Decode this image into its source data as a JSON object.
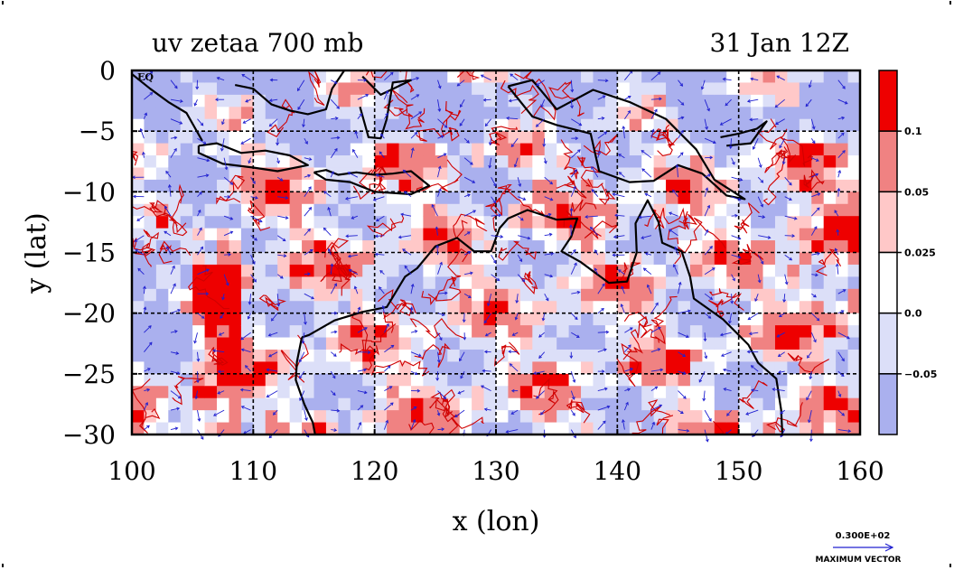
{
  "chart_data": {
    "type": "heatmap",
    "title_left": "uv zetaa 700 mb",
    "title_right": "31 Jan 12Z",
    "xlabel": "x (lon)",
    "ylabel": "y (lat)",
    "xlim": [
      100,
      160
    ],
    "ylim": [
      -30,
      0
    ],
    "x_ticks": [
      100,
      110,
      120,
      130,
      140,
      150,
      160
    ],
    "y_ticks": [
      0,
      -5,
      -10,
      -15,
      -20,
      -25,
      -30
    ],
    "x_tick_labels": [
      "100",
      "110",
      "120",
      "130",
      "140",
      "150",
      "160"
    ],
    "y_tick_labels": [
      "0",
      "−5",
      "−10",
      "−15",
      "−20",
      "−25",
      "−30"
    ],
    "corner_label": "EQ",
    "grid": true,
    "colorbar": {
      "levels": [
        -0.05,
        0.0,
        0.025,
        0.05,
        0.1
      ],
      "level_labels": [
        "−0.05",
        "0.0",
        "0.025",
        "0.05",
        "0.1"
      ],
      "colors": [
        "#aab0ee",
        "#dcdff8",
        "#ffffff",
        "#ffc8c8",
        "#f08282",
        "#ee0000"
      ]
    },
    "vector_key": {
      "value_label": "0.300E+02",
      "caption": "MAXIMUM VECTOR"
    }
  },
  "colors": {
    "coast": "#000000",
    "vector": "#2020d0",
    "contour": "#d00000",
    "grid": "#000000"
  }
}
